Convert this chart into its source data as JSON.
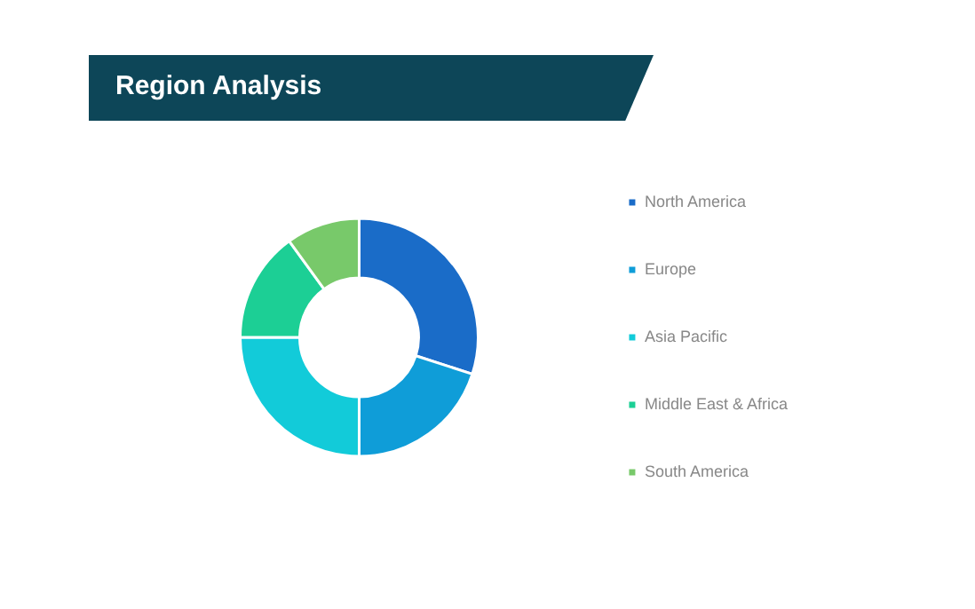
{
  "chart_data": {
    "type": "donut",
    "title": "Region Analysis",
    "categories": [
      "North America",
      "Europe",
      "Asia Pacific",
      "Middle East & Africa",
      "South America"
    ],
    "values": [
      30,
      20,
      25,
      15,
      10
    ],
    "colors": [
      "#1a6cc8",
      "#0f9dd8",
      "#12cbd9",
      "#1ccf95",
      "#78c96a"
    ],
    "legend": "right"
  }
}
